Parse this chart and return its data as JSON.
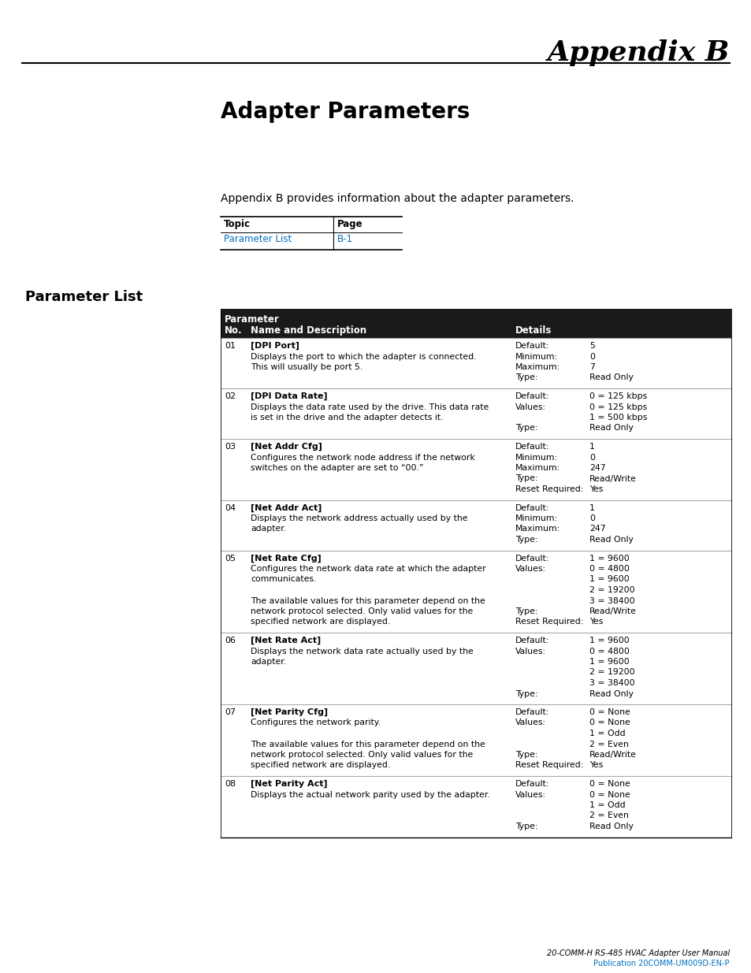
{
  "page_bg": "#ffffff",
  "appendix_title": "Appendix B",
  "section_title": "Adapter Parameters",
  "intro_text": "Appendix B provides information about the adapter parameters.",
  "section_heading": "Parameter List",
  "table_header_bg": "#1a1a1a",
  "table_header_color": "#ffffff",
  "parameters": [
    {
      "no": "01",
      "name": "[DPI Port]",
      "desc": [
        "Displays the port to which the adapter is connected.",
        "This will usually be port 5."
      ],
      "details_left": [
        "Default:",
        "Minimum:",
        "Maximum:",
        "Type:"
      ],
      "details_right": [
        "5",
        "0",
        "7",
        "Read Only"
      ]
    },
    {
      "no": "02",
      "name": "[DPI Data Rate]",
      "desc": [
        "Displays the data rate used by the drive. This data rate",
        "is set in the drive and the adapter detects it."
      ],
      "details_left": [
        "Default:",
        "Values:",
        "",
        "Type:"
      ],
      "details_right": [
        "0 = 125 kbps",
        "0 = 125 kbps",
        "1 = 500 kbps",
        "Read Only"
      ]
    },
    {
      "no": "03",
      "name": "[Net Addr Cfg]",
      "desc": [
        "Configures the network node address if the network",
        "switches on the adapter are set to “00.”"
      ],
      "details_left": [
        "Default:",
        "Minimum:",
        "Maximum:",
        "Type:",
        "Reset Required:"
      ],
      "details_right": [
        "1",
        "0",
        "247",
        "Read/Write",
        "Yes"
      ]
    },
    {
      "no": "04",
      "name": "[Net Addr Act]",
      "desc": [
        "Displays the network address actually used by the",
        "adapter."
      ],
      "details_left": [
        "Default:",
        "Minimum:",
        "Maximum:",
        "Type:"
      ],
      "details_right": [
        "1",
        "0",
        "247",
        "Read Only"
      ]
    },
    {
      "no": "05",
      "name": "[Net Rate Cfg]",
      "desc": [
        "Configures the network data rate at which the adapter",
        "communicates.",
        "",
        "The available values for this parameter depend on the",
        "network protocol selected. Only valid values for the",
        "specified network are displayed."
      ],
      "details_left": [
        "Default:",
        "Values:",
        "",
        "",
        "",
        "Type:",
        "Reset Required:"
      ],
      "details_right": [
        "1 = 9600",
        "0 = 4800",
        "1 = 9600",
        "2 = 19200",
        "3 = 38400",
        "Read/Write",
        "Yes"
      ]
    },
    {
      "no": "06",
      "name": "[Net Rate Act]",
      "desc": [
        "Displays the network data rate actually used by the",
        "adapter."
      ],
      "details_left": [
        "Default:",
        "Values:",
        "",
        "",
        "",
        "Type:"
      ],
      "details_right": [
        "1 = 9600",
        "0 = 4800",
        "1 = 9600",
        "2 = 19200",
        "3 = 38400",
        "Read Only"
      ]
    },
    {
      "no": "07",
      "name": "[Net Parity Cfg]",
      "desc": [
        "Configures the network parity.",
        "",
        "The available values for this parameter depend on the",
        "network protocol selected. Only valid values for the",
        "specified network are displayed."
      ],
      "details_left": [
        "Default:",
        "Values:",
        "",
        "",
        "Type:",
        "Reset Required:"
      ],
      "details_right": [
        "0 = None",
        "0 = None",
        "1 = Odd",
        "2 = Even",
        "Read/Write",
        "Yes"
      ]
    },
    {
      "no": "08",
      "name": "[Net Parity Act]",
      "desc": [
        "Displays the actual network parity used by the adapter."
      ],
      "details_left": [
        "Default:",
        "Values:",
        "",
        "",
        "Type:"
      ],
      "details_right": [
        "0 = None",
        "0 = None",
        "1 = Odd",
        "2 = Even",
        "Read Only"
      ]
    }
  ],
  "footer_text": "20-COMM-H RS-485 HVAC Adapter User Manual",
  "footer_link": "Publication 20COMM-UM009D-EN-P",
  "footer_link_color": "#0070c0"
}
